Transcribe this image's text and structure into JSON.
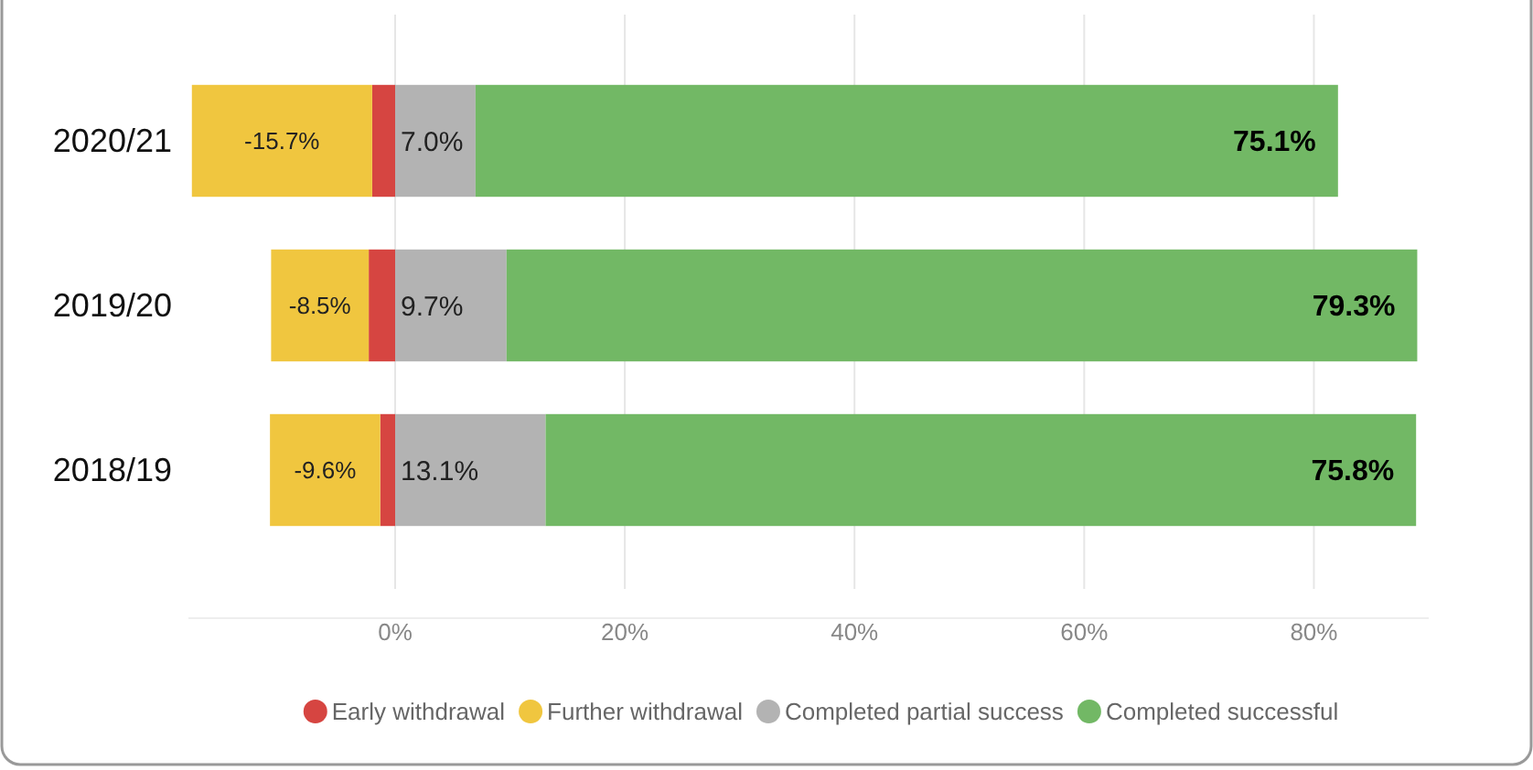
{
  "chart_data": {
    "type": "bar",
    "orientation": "horizontal",
    "stacked": true,
    "categories": [
      "2020/21",
      "2019/20",
      "2018/19"
    ],
    "series": [
      {
        "name": "Early withdrawal",
        "color": "#d64541",
        "values": [
          -2.0,
          -2.3,
          -1.3
        ]
      },
      {
        "name": "Further withdrawal",
        "color": "#f0c63f",
        "values": [
          -15.7,
          -8.5,
          -9.6
        ],
        "value_labels": [
          "-15.7%",
          "-8.5%",
          "-9.6%"
        ]
      },
      {
        "name": "Completed partial success",
        "color": "#b3b3b3",
        "values": [
          7.0,
          9.7,
          13.1
        ],
        "value_labels": [
          "7.0%",
          "9.7%",
          "13.1%"
        ]
      },
      {
        "name": "Completed successful",
        "color": "#72b865",
        "values": [
          75.1,
          79.3,
          75.8
        ],
        "value_labels": [
          "75.1%",
          "79.3%",
          "75.8%"
        ]
      }
    ],
    "xlim": [
      -18,
      90
    ],
    "xticks": [
      {
        "value": 0,
        "label": "0%"
      },
      {
        "value": 20,
        "label": "20%"
      },
      {
        "value": 40,
        "label": "40%"
      },
      {
        "value": 60,
        "label": "60%"
      },
      {
        "value": 80,
        "label": "80%"
      }
    ],
    "grid": "x",
    "legend": "bottom"
  }
}
